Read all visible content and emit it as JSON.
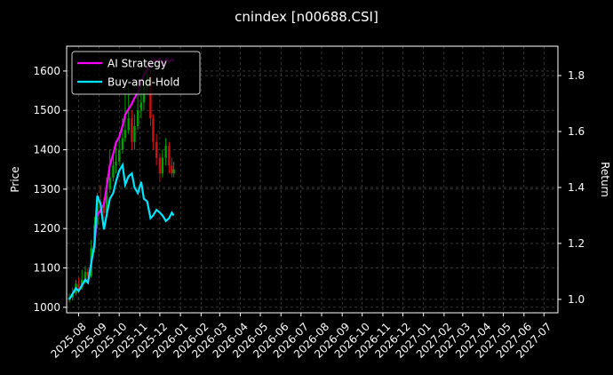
{
  "chart_data": {
    "type": "candlestick-with-returns",
    "title": "cnindex [n00688.CSI]",
    "ylabel": "Price",
    "y2label": "Return",
    "x": [
      "2025-07-18",
      "2025-07-23",
      "2025-07-28",
      "2025-08-01",
      "2025-08-06",
      "2025-08-11",
      "2025-08-15",
      "2025-08-20",
      "2025-08-25",
      "2025-08-29",
      "2025-09-03",
      "2025-09-08",
      "2025-09-12",
      "2025-09-17",
      "2025-09-22",
      "2025-09-26",
      "2025-10-01",
      "2025-10-06",
      "2025-10-10",
      "2025-10-15",
      "2025-10-20",
      "2025-10-24",
      "2025-10-29",
      "2025-11-03",
      "2025-11-07",
      "2025-11-12",
      "2025-11-17",
      "2025-11-21",
      "2025-11-26",
      "2025-12-01",
      "2025-12-05",
      "2025-12-10",
      "2025-12-15",
      "2025-12-19",
      "2025-12-22"
    ],
    "open": [
      1020,
      1025,
      1035,
      1060,
      1050,
      1070,
      1090,
      1080,
      1150,
      1210,
      1270,
      1260,
      1240,
      1300,
      1330,
      1360,
      1370,
      1400,
      1430,
      1450,
      1480,
      1420,
      1460,
      1500,
      1520,
      1560,
      1590,
      1480,
      1420,
      1380,
      1340,
      1380,
      1410,
      1360,
      1340
    ],
    "high": [
      1035,
      1050,
      1070,
      1075,
      1095,
      1105,
      1100,
      1170,
      1230,
      1290,
      1310,
      1280,
      1330,
      1400,
      1390,
      1410,
      1440,
      1480,
      1540,
      1560,
      1500,
      1490,
      1550,
      1580,
      1600,
      1620,
      1600,
      1490,
      1440,
      1390,
      1400,
      1430,
      1420,
      1380,
      1370
    ],
    "low": [
      1012,
      1018,
      1030,
      1040,
      1045,
      1060,
      1065,
      1075,
      1140,
      1200,
      1240,
      1225,
      1235,
      1290,
      1320,
      1340,
      1360,
      1390,
      1420,
      1440,
      1400,
      1400,
      1450,
      1480,
      1500,
      1540,
      1460,
      1400,
      1360,
      1320,
      1330,
      1360,
      1340,
      1330,
      1330
    ],
    "close": [
      1025,
      1035,
      1060,
      1050,
      1070,
      1090,
      1080,
      1150,
      1210,
      1270,
      1260,
      1240,
      1300,
      1330,
      1360,
      1370,
      1400,
      1430,
      1450,
      1480,
      1420,
      1460,
      1500,
      1520,
      1560,
      1590,
      1480,
      1420,
      1380,
      1340,
      1380,
      1410,
      1360,
      1340,
      1350
    ],
    "up_color": "#00a000",
    "down_color": "#d01010",
    "series": [
      {
        "name": "AI Strategy",
        "color": "#ff00ff",
        "axis": "y2",
        "values": [
          1.0,
          1.02,
          1.04,
          1.03,
          1.05,
          1.07,
          1.06,
          1.13,
          1.2,
          1.3,
          1.32,
          1.34,
          1.4,
          1.48,
          1.52,
          1.56,
          1.58,
          1.62,
          1.66,
          1.68,
          1.7,
          1.72,
          1.74,
          1.78,
          1.8,
          1.82,
          1.84,
          1.86,
          1.85,
          1.86,
          1.84,
          1.86,
          1.85,
          1.86,
          1.85
        ]
      },
      {
        "name": "Buy-and-Hold",
        "color": "#00e5ff",
        "axis": "y2",
        "values": [
          1.0,
          1.02,
          1.04,
          1.03,
          1.05,
          1.07,
          1.06,
          1.13,
          1.2,
          1.37,
          1.34,
          1.25,
          1.3,
          1.36,
          1.38,
          1.42,
          1.46,
          1.48,
          1.41,
          1.44,
          1.45,
          1.4,
          1.38,
          1.42,
          1.36,
          1.35,
          1.29,
          1.3,
          1.32,
          1.31,
          1.3,
          1.28,
          1.29,
          1.31,
          1.3
        ]
      }
    ],
    "xlim": [
      "2025-07-14",
      "2027-07-22"
    ],
    "xticks": [
      "2025-08",
      "2025-09",
      "2025-10",
      "2025-11",
      "2025-12",
      "2026-01",
      "2026-02",
      "2026-03",
      "2026-04",
      "2026-05",
      "2026-06",
      "2026-07",
      "2026-08",
      "2026-09",
      "2026-10",
      "2026-11",
      "2026-12",
      "2027-01",
      "2027-02",
      "2027-03",
      "2027-04",
      "2027-05",
      "2027-06",
      "2027-07"
    ],
    "ylim": [
      986,
      1663
    ],
    "yticks": [
      1000,
      1100,
      1200,
      1300,
      1400,
      1500,
      1600
    ],
    "y2lim": [
      0.952,
      1.905
    ],
    "y2ticks": [
      {
        "value": 1,
        "label": "1.0"
      },
      1.2,
      1.4,
      1.6,
      1.8
    ],
    "grid": true,
    "legend": "upper left"
  }
}
